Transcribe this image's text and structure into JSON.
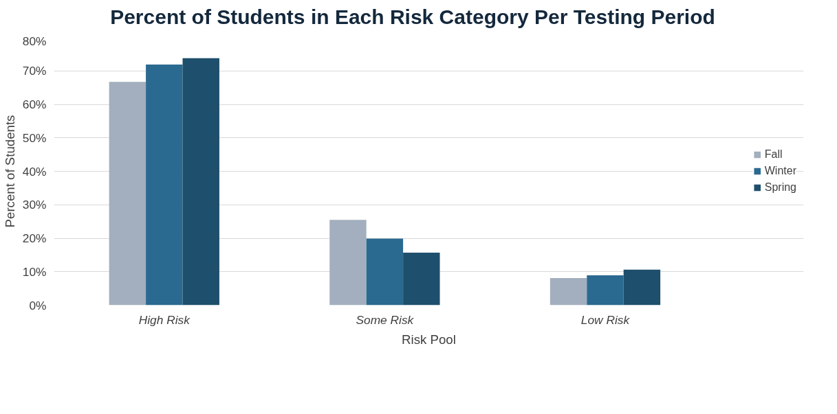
{
  "chart_data": {
    "type": "bar",
    "title": "Percent of Students in Each Risk Category Per Testing Period",
    "xlabel": "Risk Pool",
    "ylabel": "Percent of Students",
    "categories": [
      "High Risk",
      "Some Risk",
      "Low Risk"
    ],
    "series": [
      {
        "name": "Fall",
        "color": "#a3afbe",
        "values": [
          66.7,
          25.5,
          8.1
        ]
      },
      {
        "name": "Winter",
        "color": "#2b6a90",
        "values": [
          71.9,
          19.9,
          8.9
        ]
      },
      {
        "name": "Spring",
        "color": "#1e4f6c",
        "values": [
          73.8,
          15.7,
          10.6
        ]
      }
    ],
    "ylim": [
      0,
      80
    ],
    "yticks": [
      {
        "value": 0,
        "label": "0%"
      },
      {
        "value": 10,
        "label": "10%"
      },
      {
        "value": 20,
        "label": "20%"
      },
      {
        "value": 30,
        "label": "30%"
      },
      {
        "value": 40,
        "label": "40%"
      },
      {
        "value": 50,
        "label": "50%"
      },
      {
        "value": 60,
        "label": "60%"
      },
      {
        "value": 70,
        "label": "70%"
      },
      {
        "value": 80,
        "label": "80%"
      }
    ],
    "grid": "y",
    "legend": "right"
  }
}
